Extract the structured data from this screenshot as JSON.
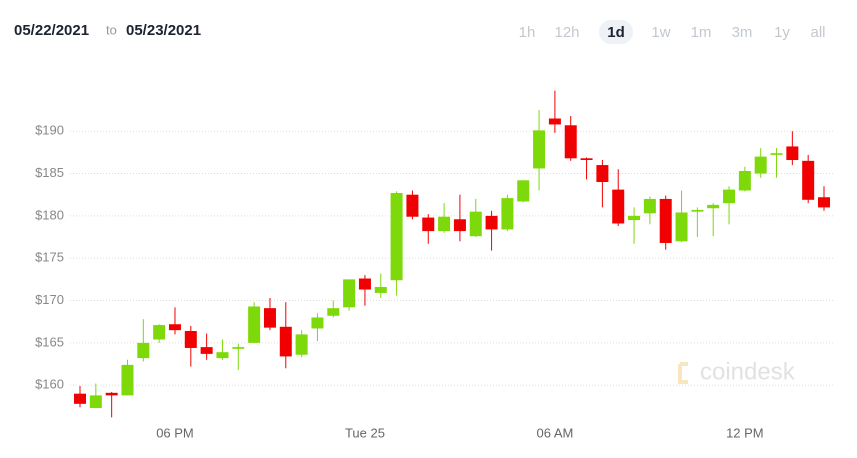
{
  "header": {
    "from": "05/22/2021",
    "to_word": "to",
    "to": "05/23/2021",
    "ranges": [
      "1h",
      "12h",
      "1d",
      "1w",
      "1m",
      "3m",
      "1y",
      "all"
    ],
    "selected_range": 2
  },
  "watermark": "coindesk",
  "chart_data": {
    "type": "candlestick",
    "categories": [
      null,
      null,
      null,
      null,
      null,
      null,
      "06 PM",
      null,
      null,
      null,
      null,
      null,
      null,
      null,
      null,
      null,
      null,
      null,
      "Tue 25",
      null,
      null,
      null,
      null,
      null,
      null,
      null,
      null,
      null,
      null,
      null,
      "06 AM",
      null,
      null,
      null,
      null,
      null,
      null,
      null,
      null,
      null,
      null,
      null,
      "12 PM",
      null,
      null,
      null,
      null,
      null
    ],
    "open": [
      159.0,
      157.3,
      159.1,
      158.8,
      163.2,
      165.4,
      167.2,
      166.4,
      164.5,
      163.2,
      164.3,
      165.0,
      169.1,
      166.9,
      163.6,
      166.7,
      168.2,
      169.2,
      172.6,
      170.9,
      172.4,
      182.5,
      179.8,
      178.2,
      179.6,
      177.6,
      180.0,
      178.4,
      181.7,
      185.6,
      191.5,
      190.7,
      186.8,
      186.0,
      183.1,
      179.5,
      180.3,
      182.0,
      177.0,
      180.5,
      180.9,
      181.5,
      183.0,
      185.0,
      187.2,
      188.2,
      186.5,
      182.2
    ],
    "high": [
      159.9,
      160.2,
      159.2,
      163.0,
      167.8,
      167.2,
      169.2,
      167.0,
      166.1,
      165.4,
      164.9,
      169.8,
      170.3,
      169.8,
      166.5,
      168.5,
      170.0,
      172.5,
      173.0,
      173.2,
      182.9,
      183.0,
      180.2,
      181.5,
      182.5,
      182.0,
      180.6,
      182.5,
      184.2,
      192.5,
      194.8,
      191.8,
      186.9,
      186.6,
      185.5,
      181.0,
      182.3,
      182.4,
      183.0,
      181.0,
      181.5,
      183.5,
      185.8,
      188.0,
      188.0,
      190.0,
      187.2,
      183.5
    ],
    "low": [
      157.4,
      157.3,
      156.2,
      158.8,
      162.8,
      165.0,
      166.0,
      162.2,
      163.0,
      163.0,
      161.8,
      165.0,
      166.5,
      162.0,
      163.3,
      165.2,
      168.0,
      168.8,
      169.4,
      170.3,
      170.6,
      179.6,
      176.7,
      178.0,
      177.0,
      177.5,
      175.9,
      178.2,
      181.6,
      183.0,
      189.8,
      186.5,
      184.3,
      181.0,
      178.8,
      176.7,
      179.0,
      176.0,
      176.9,
      177.5,
      177.6,
      179.0,
      182.9,
      184.5,
      184.5,
      186.0,
      181.5,
      180.6
    ],
    "close": [
      157.8,
      158.8,
      158.8,
      162.4,
      165.0,
      167.1,
      166.5,
      164.4,
      163.7,
      163.9,
      164.5,
      169.3,
      166.8,
      163.4,
      166.0,
      168.0,
      169.1,
      172.5,
      171.3,
      171.6,
      182.7,
      179.9,
      178.2,
      179.9,
      178.2,
      180.5,
      178.4,
      182.1,
      184.2,
      190.1,
      190.8,
      186.8,
      186.6,
      184.0,
      179.1,
      180.0,
      182.0,
      176.8,
      180.4,
      180.7,
      181.3,
      183.1,
      185.3,
      187.0,
      187.4,
      186.6,
      181.9,
      181.0
    ],
    "up_color": "#7ed90a",
    "down_color": "#f00000",
    "ylim": [
      155.3,
      199
    ],
    "yticks": [
      {
        "value": 160,
        "label": "$160"
      },
      {
        "value": 165,
        "label": "$165"
      },
      {
        "value": 170,
        "label": "$170"
      },
      {
        "value": 175,
        "label": "$175"
      },
      {
        "value": 180,
        "label": "$180"
      },
      {
        "value": 185,
        "label": "$185"
      },
      {
        "value": 190,
        "label": "$190"
      }
    ],
    "grid": true
  }
}
